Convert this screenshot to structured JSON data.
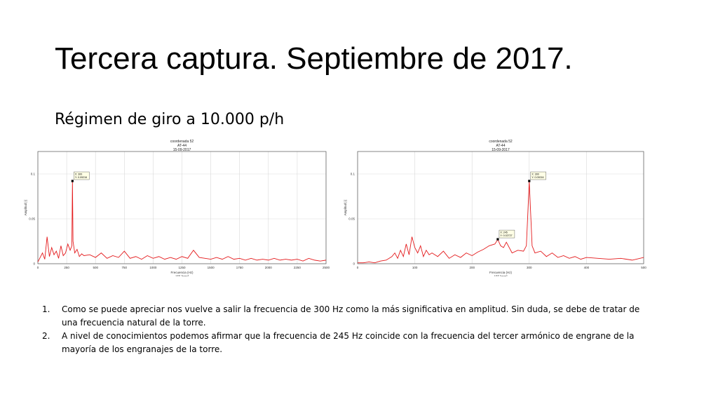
{
  "slide": {
    "title": "Tercera captura. Septiembre de 2017.",
    "subtitle": "Régimen de giro a 10.000 p/h"
  },
  "notes": [
    {
      "number": "1.",
      "text": "Como se puede apreciar nos vuelve a salir la frecuencia de 300 Hz como la más significativa en amplitud. Sin duda, se debe de tratar de una frecuencia natural de la torre."
    },
    {
      "number": "2.",
      "text": "A nivel de conocimientos podemos afirmar que la frecuencia de 245 Hz coincide con la frecuencia del tercer armónico de engrane de la mayoría de los engranajes de la torre."
    }
  ],
  "colors": {
    "series": "#e41a1c",
    "grid": "#d9d9d9",
    "tooltip_bg": "#ffffe6"
  },
  "chart_data": [
    {
      "type": "line",
      "title_lines": [
        "coordenada 52",
        "AT-44",
        "15-09-2017"
      ],
      "xlabel_lines": [
        "Frecuencia (Hz)",
        "155 [rpm]"
      ],
      "ylabel": "Amplitud [-]",
      "xlim": [
        0,
        2500
      ],
      "ylim": [
        0,
        0.125
      ],
      "xticks": [
        0,
        250,
        500,
        750,
        1000,
        1250,
        1500,
        1750,
        2000,
        2250,
        2500
      ],
      "xtick_labels": [
        "0",
        "250",
        "500",
        "750",
        "1000",
        "1250",
        "1500",
        "1750",
        "2000",
        "2250",
        "2500"
      ],
      "yticks": [
        0,
        0.05,
        0.1
      ],
      "ytick_labels": [
        "0",
        "0.05",
        "0.1"
      ],
      "grid": true,
      "series": [
        {
          "x": [
            0,
            40,
            60,
            80,
            100,
            120,
            140,
            160,
            180,
            200,
            220,
            240,
            260,
            280,
            295,
            300,
            305,
            320,
            340,
            360,
            380,
            400,
            450,
            500,
            550,
            600,
            650,
            700,
            750,
            800,
            850,
            900,
            950,
            1000,
            1050,
            1100,
            1150,
            1200,
            1250,
            1300,
            1350,
            1400,
            1450,
            1500,
            1550,
            1600,
            1650,
            1700,
            1750,
            1800,
            1850,
            1900,
            1950,
            2000,
            2050,
            2100,
            2150,
            2200,
            2250,
            2300,
            2350,
            2400,
            2450,
            2500
          ],
          "y": [
            0.002,
            0.012,
            0.005,
            0.03,
            0.008,
            0.018,
            0.01,
            0.014,
            0.006,
            0.02,
            0.009,
            0.012,
            0.022,
            0.015,
            0.02,
            0.093,
            0.025,
            0.012,
            0.016,
            0.008,
            0.011,
            0.009,
            0.01,
            0.007,
            0.012,
            0.006,
            0.009,
            0.007,
            0.014,
            0.006,
            0.008,
            0.005,
            0.009,
            0.006,
            0.008,
            0.005,
            0.007,
            0.005,
            0.008,
            0.006,
            0.015,
            0.007,
            0.006,
            0.005,
            0.007,
            0.005,
            0.008,
            0.005,
            0.006,
            0.004,
            0.006,
            0.004,
            0.005,
            0.004,
            0.006,
            0.004,
            0.005,
            0.004,
            0.005,
            0.003,
            0.006,
            0.004,
            0.003,
            0.004
          ]
        }
      ],
      "marker": {
        "x": 300,
        "y": 0.09216,
        "label_lines": [
          "X: 300",
          "Y: 0.09216"
        ]
      }
    },
    {
      "type": "line",
      "title_lines": [
        "coordenada 52",
        "AT-44",
        "15-09-2017"
      ],
      "xlabel_lines": [
        "Frecuencia (Hz)",
        "155 [rpm]"
      ],
      "ylabel": "Amplitud [-]",
      "xlim": [
        0,
        500
      ],
      "ylim": [
        0,
        0.125
      ],
      "xticks": [
        0,
        100,
        200,
        300,
        400,
        500
      ],
      "xtick_labels": [
        "0",
        "100",
        "200",
        "300",
        "400",
        "500"
      ],
      "yticks": [
        0,
        0.05,
        0.1
      ],
      "ytick_labels": [
        "0",
        "0.05",
        "0.1"
      ],
      "grid": true,
      "series": [
        {
          "x": [
            0,
            10,
            20,
            30,
            40,
            50,
            60,
            65,
            70,
            75,
            80,
            85,
            90,
            95,
            100,
            105,
            110,
            115,
            120,
            125,
            130,
            140,
            150,
            160,
            170,
            180,
            190,
            200,
            210,
            220,
            230,
            240,
            245,
            250,
            255,
            260,
            270,
            280,
            290,
            295,
            300,
            305,
            310,
            320,
            330,
            340,
            350,
            360,
            370,
            380,
            390,
            400,
            420,
            440,
            460,
            480,
            500
          ],
          "y": [
            0.001,
            0.001,
            0.002,
            0.001,
            0.003,
            0.004,
            0.008,
            0.012,
            0.006,
            0.015,
            0.008,
            0.022,
            0.01,
            0.03,
            0.018,
            0.012,
            0.02,
            0.008,
            0.015,
            0.01,
            0.012,
            0.008,
            0.014,
            0.006,
            0.01,
            0.007,
            0.012,
            0.009,
            0.013,
            0.016,
            0.02,
            0.022,
            0.027,
            0.02,
            0.018,
            0.024,
            0.012,
            0.015,
            0.014,
            0.02,
            0.092,
            0.02,
            0.012,
            0.014,
            0.008,
            0.012,
            0.007,
            0.009,
            0.006,
            0.008,
            0.005,
            0.007,
            0.006,
            0.005,
            0.006,
            0.004,
            0.007
          ]
        }
      ],
      "marker": {
        "x": 245,
        "y": 0.02727,
        "label_lines": [
          "X: 245",
          "Y: 0.02727"
        ]
      },
      "marker2": {
        "x": 300,
        "y": 0.09216,
        "label_lines": [
          "X: 300",
          "Y: 0.09216"
        ]
      }
    }
  ]
}
